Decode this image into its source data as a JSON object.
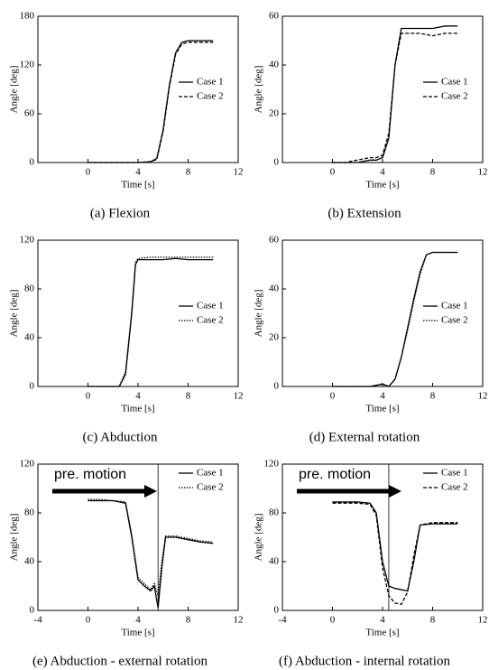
{
  "chart_data": [
    {
      "type": "line",
      "caption": "(a) Flexion",
      "xlabel": "Time [s]",
      "ylabel": "Angle [deg]",
      "xlim": [
        -4,
        12
      ],
      "xticks": [
        0,
        4,
        8,
        12
      ],
      "ylim": [
        0,
        180
      ],
      "yticks": [
        0,
        60,
        120,
        180
      ],
      "legend": "right",
      "x": [
        0,
        1,
        2,
        3,
        4,
        5,
        5.5,
        6,
        6.5,
        7,
        7.5,
        8,
        9,
        10
      ],
      "series": [
        {
          "name": "Case 1",
          "color": "#000000",
          "line_style": "solid",
          "values": [
            0,
            0,
            0,
            0,
            0,
            1,
            5,
            40,
            95,
            135,
            148,
            150,
            150,
            150
          ]
        },
        {
          "name": "Case 2",
          "color": "#000000",
          "line_style": "dashed",
          "values": [
            0,
            0,
            0,
            0,
            0,
            1,
            4,
            38,
            93,
            133,
            146,
            148,
            148,
            148
          ]
        }
      ]
    },
    {
      "type": "line",
      "caption": "(b) Extension",
      "xlabel": "Time [s]",
      "ylabel": "Angle [deg]",
      "xlim": [
        -4,
        12
      ],
      "xticks": [
        0,
        4,
        8,
        12
      ],
      "ylim": [
        0,
        60
      ],
      "yticks": [
        0,
        20,
        40,
        60
      ],
      "legend": "right",
      "x": [
        0,
        1,
        2,
        3,
        3.5,
        4,
        4.5,
        5,
        5.5,
        6,
        7,
        8,
        9,
        10
      ],
      "series": [
        {
          "name": "Case 1",
          "color": "#000000",
          "line_style": "solid",
          "values": [
            0,
            0,
            0,
            1,
            1,
            2,
            10,
            40,
            55,
            55,
            55,
            55,
            56,
            56
          ]
        },
        {
          "name": "Case 2",
          "color": "#000000",
          "line_style": "dashed",
          "values": [
            0,
            0,
            1,
            2,
            2,
            3,
            12,
            40,
            53,
            53,
            53,
            52,
            53,
            53
          ]
        }
      ]
    },
    {
      "type": "line",
      "caption": "(c) Abduction",
      "xlabel": "Time [s]",
      "ylabel": "Angle [deg]",
      "xlim": [
        -4,
        12
      ],
      "xticks": [
        0,
        4,
        8,
        12
      ],
      "ylim": [
        0,
        120
      ],
      "yticks": [
        0,
        40,
        80,
        120
      ],
      "legend": "right",
      "x": [
        0,
        1,
        2,
        2.5,
        3,
        3.5,
        3.8,
        4,
        5,
        6,
        7,
        8,
        9,
        10
      ],
      "series": [
        {
          "name": "Case 1",
          "color": "#000000",
          "line_style": "solid",
          "values": [
            0,
            0,
            0,
            0,
            10,
            60,
            100,
            104,
            104,
            104,
            105,
            104,
            104,
            104
          ]
        },
        {
          "name": "Case 2",
          "color": "#000000",
          "line_style": "dotted",
          "values": [
            0,
            0,
            0,
            0,
            12,
            62,
            102,
            105,
            106,
            106,
            106,
            106,
            106,
            106
          ]
        }
      ]
    },
    {
      "type": "line",
      "caption": "(d) External rotation",
      "xlabel": "Time [s]",
      "ylabel": "Angle [deg]",
      "xlim": [
        -4,
        12
      ],
      "xticks": [
        0,
        4,
        8,
        12
      ],
      "ylim": [
        0,
        60
      ],
      "yticks": [
        0,
        20,
        40,
        60
      ],
      "legend": "right",
      "x": [
        0,
        1,
        2,
        3,
        4,
        4.5,
        5,
        5.5,
        6,
        6.5,
        7,
        7.5,
        8,
        9,
        10
      ],
      "series": [
        {
          "name": "Case 1",
          "color": "#000000",
          "line_style": "solid",
          "values": [
            0,
            0,
            0,
            0,
            1,
            0,
            3,
            12,
            24,
            36,
            47,
            54,
            55,
            55,
            55
          ]
        },
        {
          "name": "Case 2",
          "color": "#000000",
          "line_style": "dotted",
          "values": [
            0,
            0,
            0,
            0,
            1,
            0,
            3,
            12,
            23,
            35,
            46,
            54,
            55,
            55,
            55
          ]
        }
      ]
    },
    {
      "type": "line",
      "caption": "(e) Abduction - external rotation",
      "xlabel": "Time [s]",
      "ylabel": "Angle [deg]",
      "xlim": [
        -4,
        12
      ],
      "xticks": [
        -4,
        0,
        4,
        8,
        12
      ],
      "ylim": [
        0,
        120
      ],
      "yticks": [
        0,
        40,
        80,
        120
      ],
      "legend": "upper right",
      "annotation": "pre. motion",
      "vline": 5.6,
      "x": [
        0,
        1,
        2,
        3,
        3.5,
        4,
        4.5,
        5,
        5.3,
        5.6,
        5.9,
        6.2,
        7,
        8,
        9,
        10
      ],
      "series": [
        {
          "name": "Case 1",
          "color": "#000000",
          "line_style": "solid",
          "values": [
            90,
            90,
            90,
            88,
            60,
            25,
            20,
            16,
            20,
            2,
            35,
            60,
            60,
            58,
            56,
            55
          ]
        },
        {
          "name": "Case 2",
          "color": "#000000",
          "line_style": "dotted",
          "values": [
            91,
            91,
            90,
            89,
            62,
            27,
            22,
            17,
            22,
            12,
            40,
            61,
            61,
            59,
            57,
            56
          ]
        }
      ]
    },
    {
      "type": "line",
      "caption": "(f) Abduction - internal rotation",
      "xlabel": "Time [s]",
      "ylabel": "Angle [deg]",
      "xlim": [
        -4,
        12
      ],
      "xticks": [
        -4,
        0,
        4,
        8,
        12
      ],
      "ylim": [
        0,
        120
      ],
      "yticks": [
        0,
        40,
        80,
        120
      ],
      "legend": "upper right",
      "annotation": "pre. motion",
      "vline": 4.5,
      "x": [
        0,
        1,
        2,
        3,
        3.5,
        4,
        4.5,
        5,
        5.5,
        6,
        6.5,
        7,
        8,
        9,
        10
      ],
      "series": [
        {
          "name": "Case 1",
          "color": "#000000",
          "line_style": "solid",
          "values": [
            89,
            89,
            89,
            88,
            80,
            40,
            20,
            18,
            17,
            16,
            40,
            70,
            71,
            71,
            71
          ]
        },
        {
          "name": "Case 2",
          "color": "#000000",
          "line_style": "dashed",
          "values": [
            88,
            88,
            88,
            87,
            78,
            35,
            12,
            6,
            5,
            15,
            45,
            70,
            72,
            72,
            72
          ]
        }
      ]
    }
  ]
}
